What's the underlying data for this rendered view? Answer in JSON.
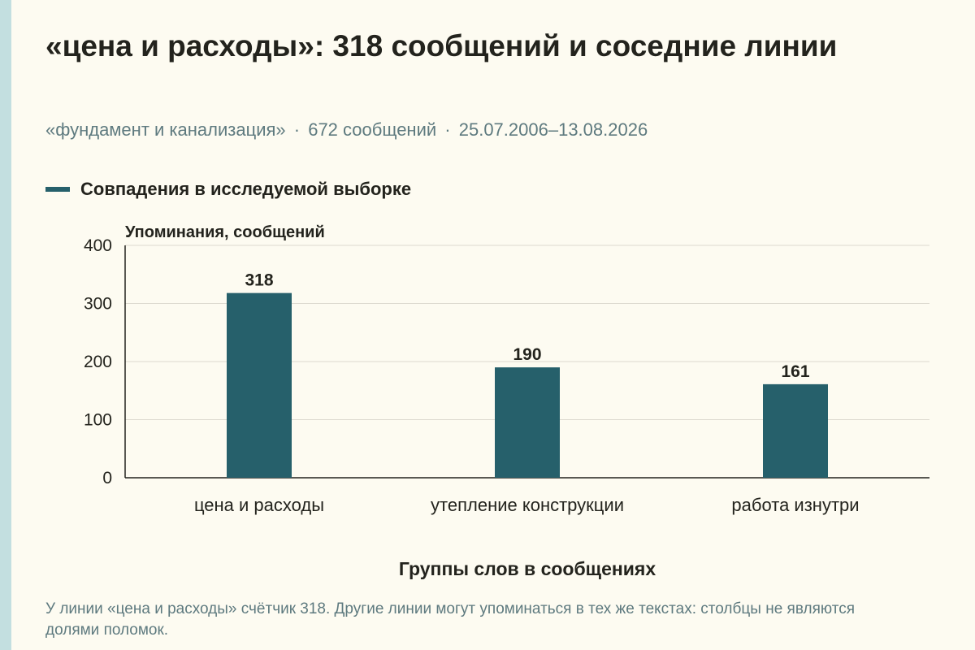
{
  "header": {
    "title": "«цена и расходы»: 318 сообщений и соседние линии",
    "subtitle_parts": [
      "«фундамент и канализация»",
      "672 сообщений",
      "25.07.2006–13.08.2026"
    ],
    "separator": "·"
  },
  "legend": {
    "label": "Совпадения в исследуемой выборке"
  },
  "footnote": "У линии «цена и расходы» счётчик 318. Другие линии могут упоминаться в тех же текстах: столбцы не являются долями поломок.",
  "colors": {
    "bar": "#26606b",
    "background": "#fdfbf1",
    "stripe": "#c3dfe0",
    "text": "#23231d",
    "muted": "#5e7a7f",
    "grid": "#dddad0",
    "axis": "#23231d"
  },
  "chart_data": {
    "type": "bar",
    "categories": [
      "цена и расходы",
      "утепление конструкции",
      "работа изнутри"
    ],
    "series": [
      {
        "name": "Совпадения в исследуемой выборке",
        "values": [
          318,
          190,
          161
        ]
      }
    ],
    "ylabel": "Упоминания, сообщений",
    "xlabel": "Группы слов в сообщениях",
    "ylim": [
      0,
      400
    ],
    "yticks": [
      0,
      100,
      200,
      300,
      400
    ],
    "grid": true,
    "data_labels": true,
    "legend_position": "top-left"
  }
}
